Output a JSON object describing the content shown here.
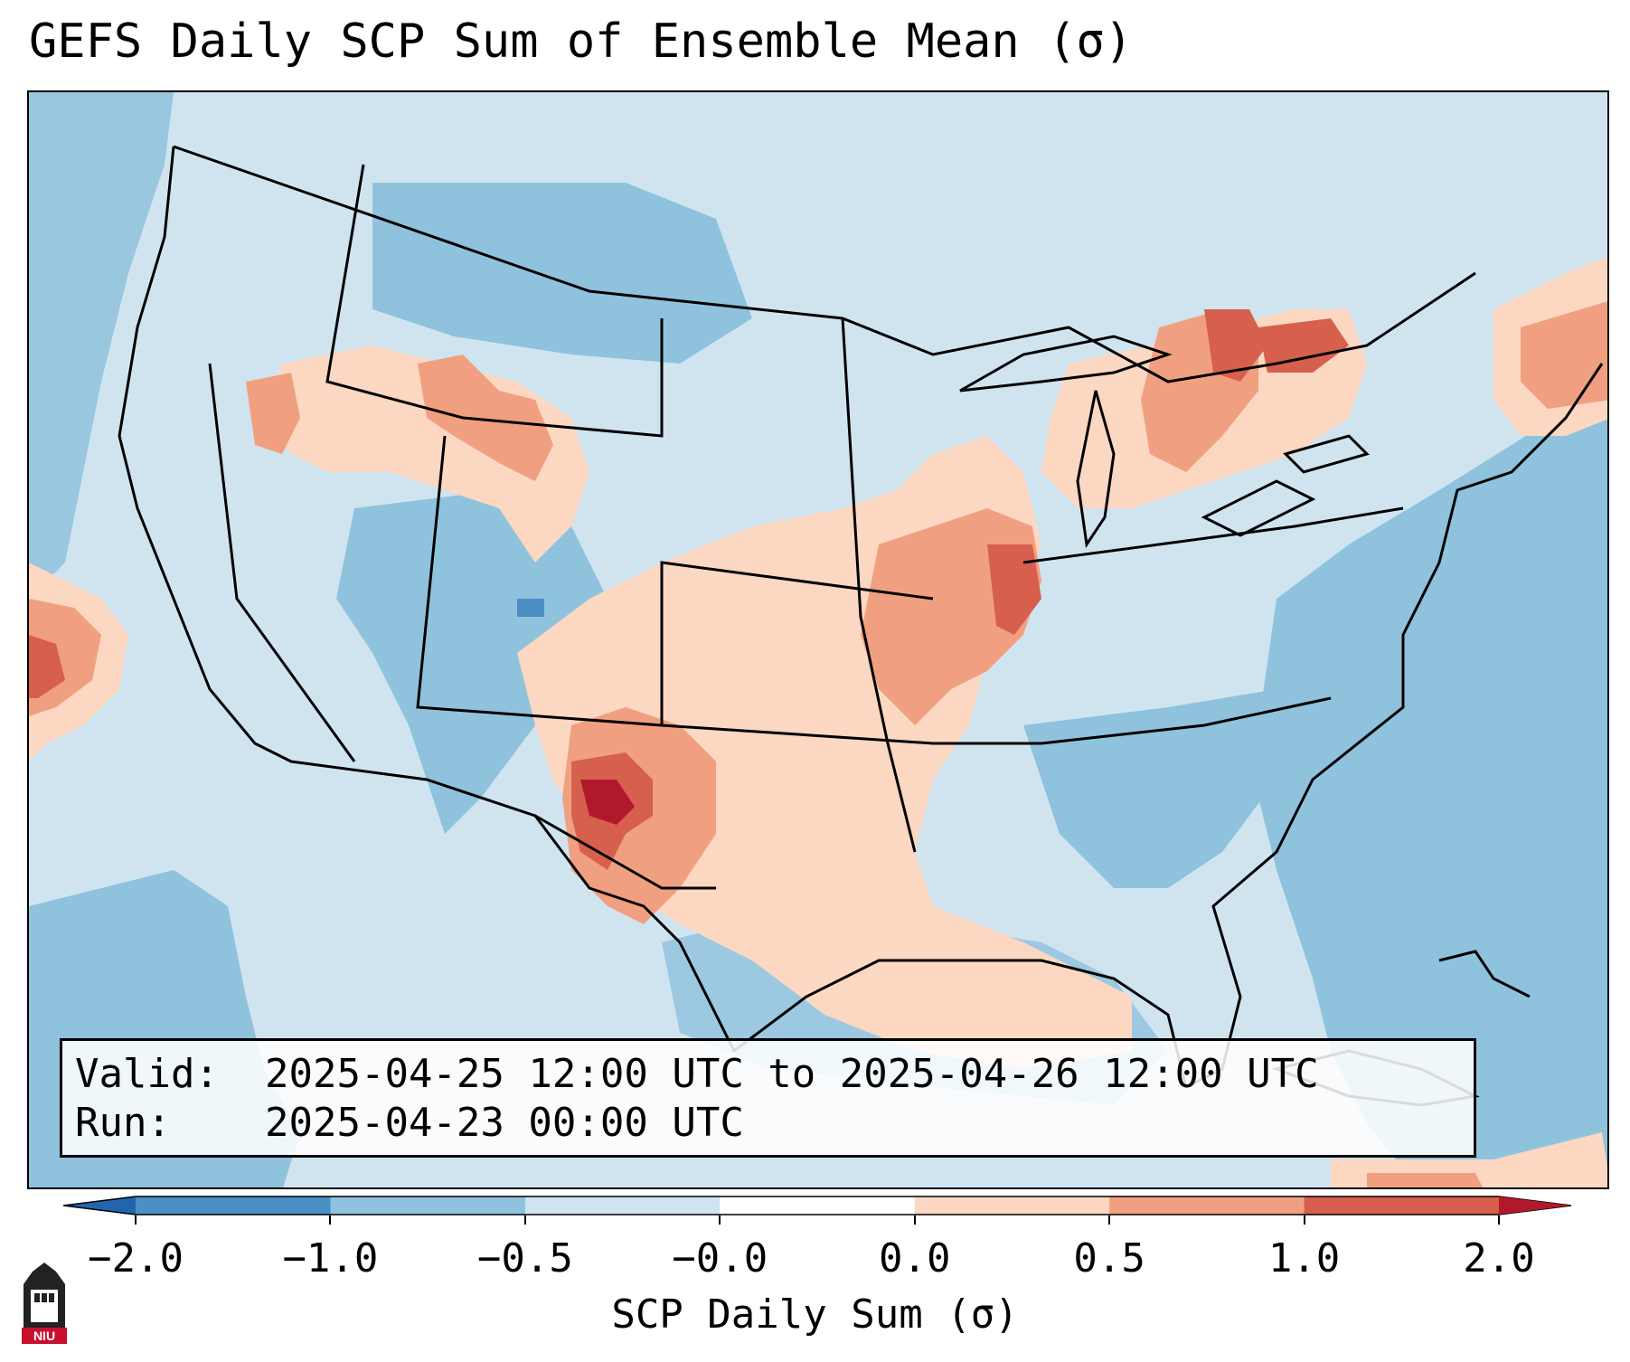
{
  "title": "GEFS Daily SCP Sum of Ensemble Mean (σ)",
  "info": {
    "valid_label": "Valid:",
    "valid_value": "2025-04-25 12:00 UTC to 2025-04-26 12:00 UTC",
    "run_label": "Run:",
    "run_value": "2025-04-23 00:00 UTC"
  },
  "colorbar": {
    "label": "SCP Daily Sum (σ)",
    "ticks": [
      "−2.0",
      "−1.0",
      "−0.5",
      "−0.0",
      "0.0",
      "0.5",
      "1.0",
      "2.0"
    ],
    "bins": [
      {
        "color": "#4a90c4"
      },
      {
        "color": "#8fc2dd"
      },
      {
        "color": "#d0e4f0"
      },
      {
        "color": "#ffffff"
      },
      {
        "color": "#fcd7c2"
      },
      {
        "color": "#f0a080"
      },
      {
        "color": "#d6604d"
      }
    ],
    "under_color": "#2166ac",
    "over_color": "#b2182b"
  },
  "logo": {
    "text": "NIU"
  },
  "colors": {
    "ocean": "#8fc2dd",
    "land_neutral": "#d0e4f0",
    "positive_light": "#fcd7c2",
    "positive_mid": "#f0a080",
    "positive_high": "#d6604d",
    "positive_max": "#b2182b"
  }
}
